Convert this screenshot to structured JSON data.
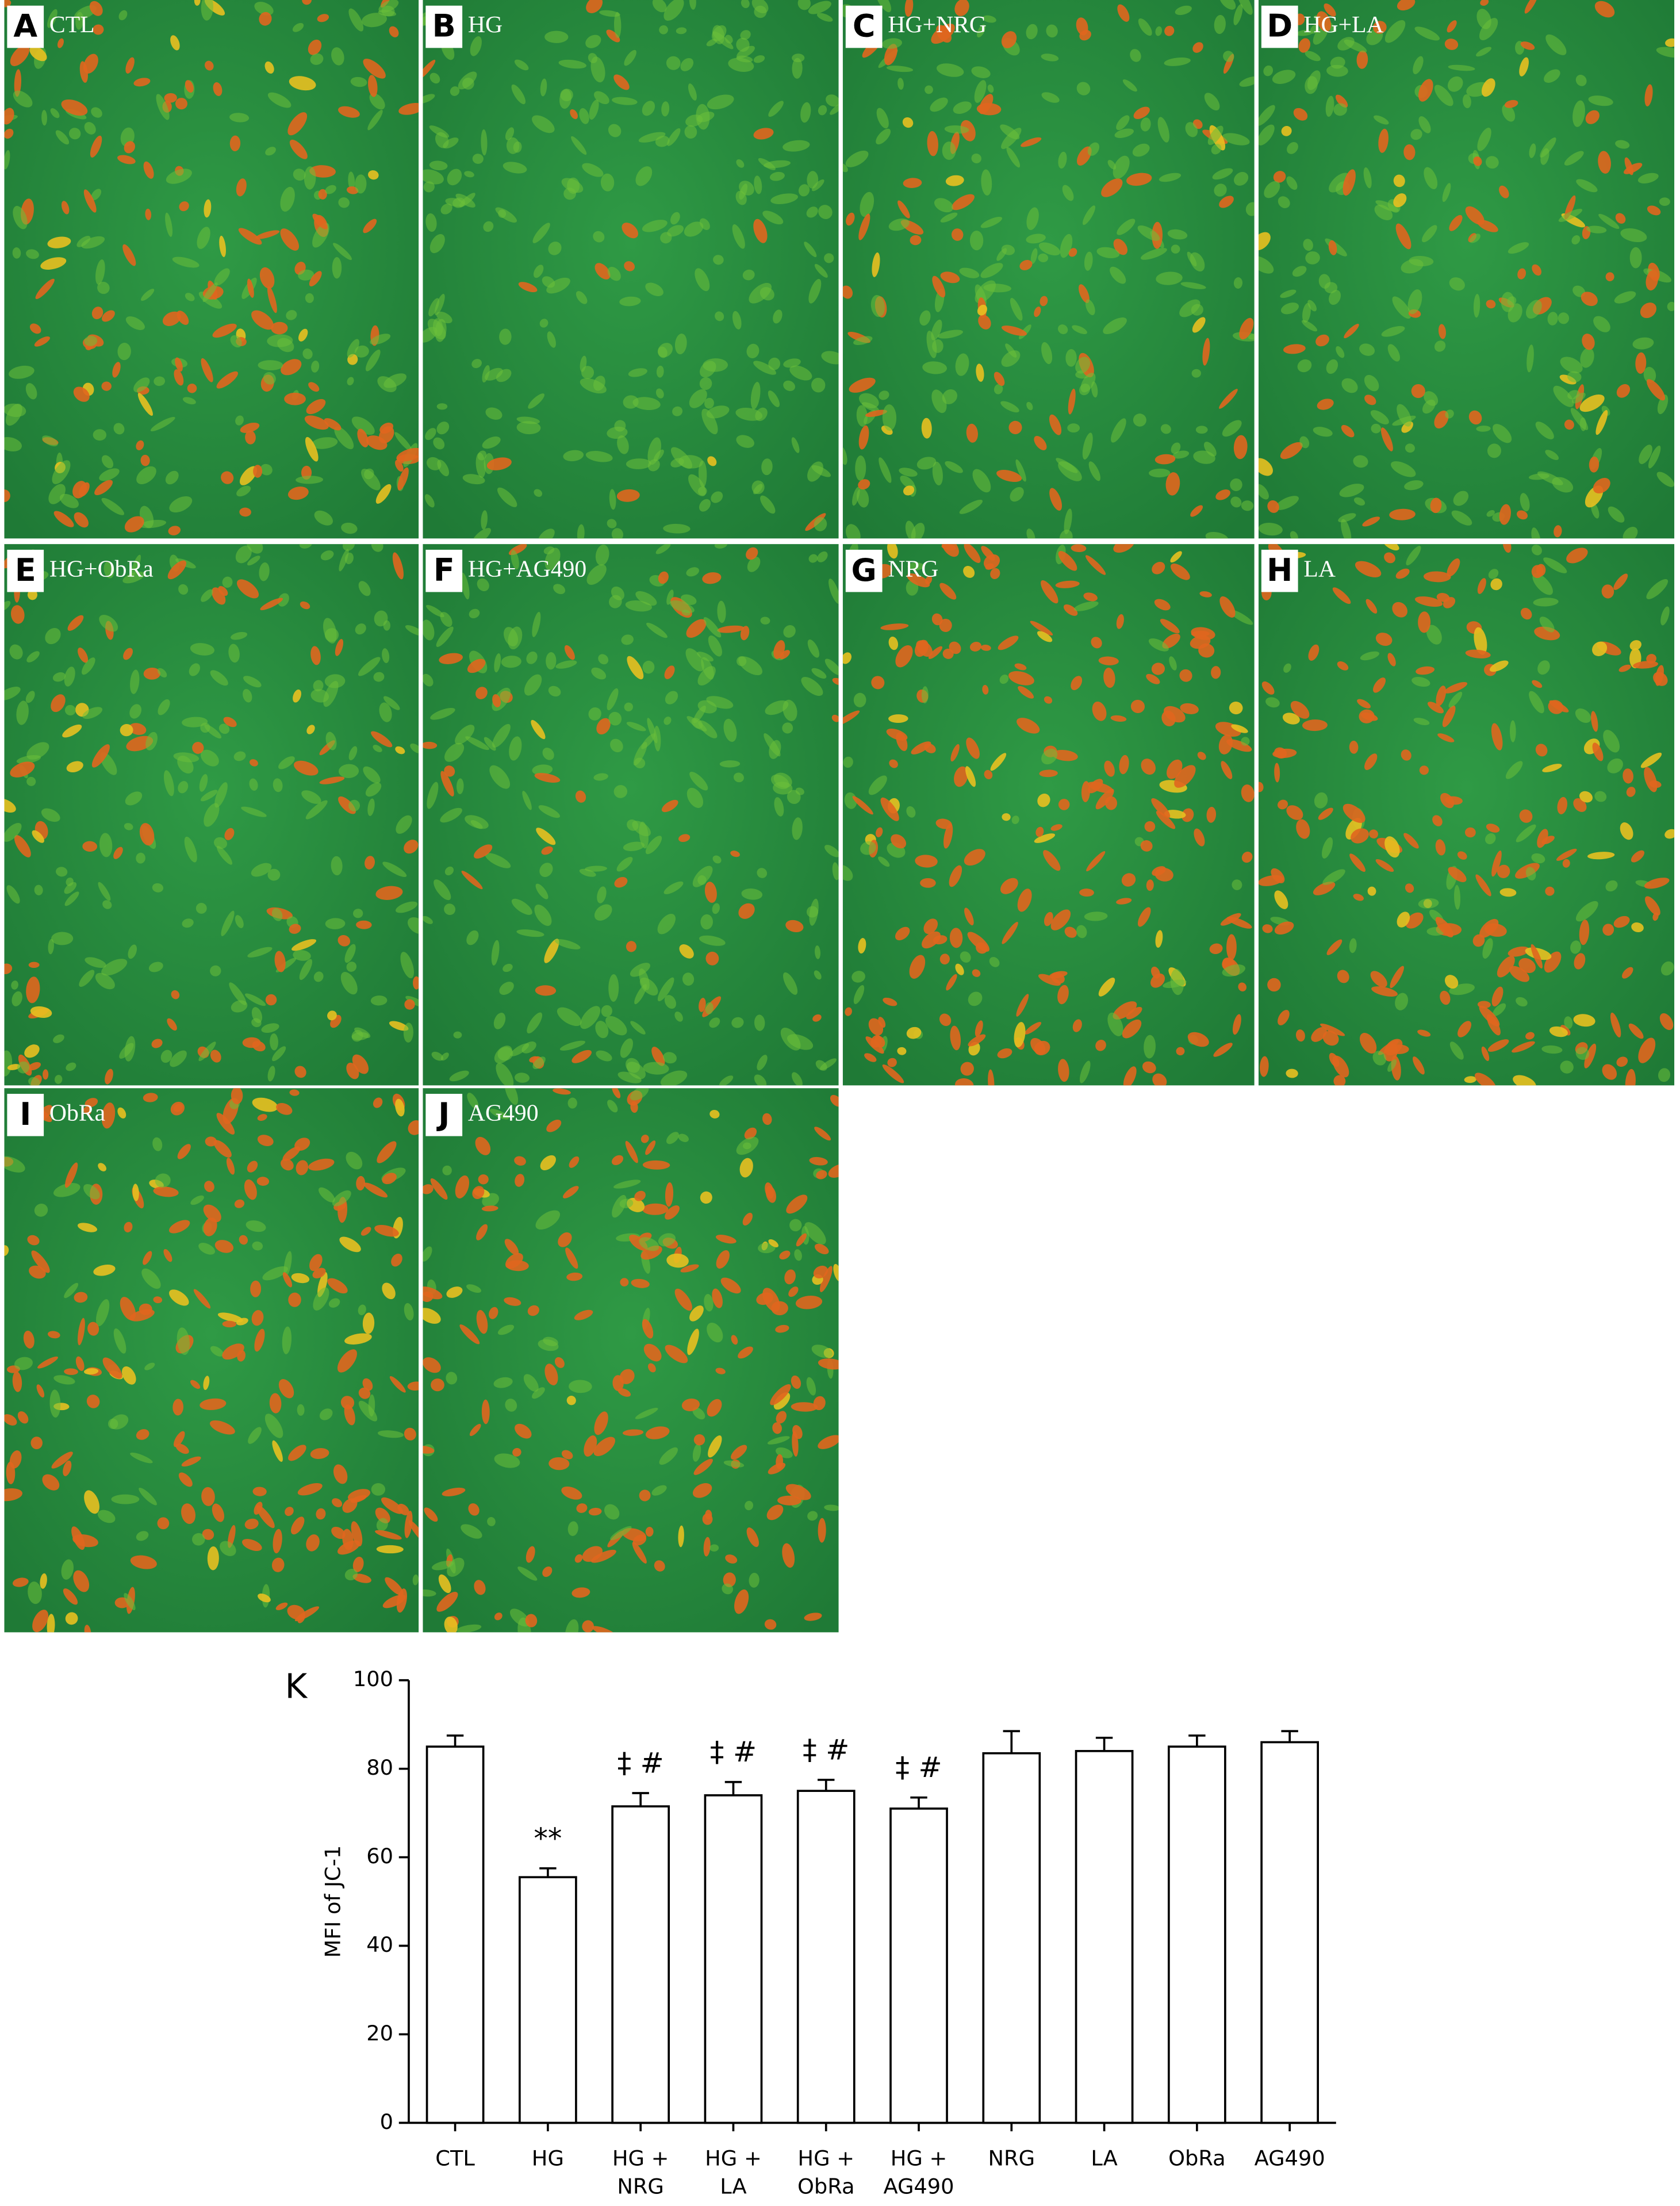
{
  "panels": [
    {
      "letter": "A",
      "label": "CTL"
    },
    {
      "letter": "B",
      "label": "HG"
    },
    {
      "letter": "C",
      "label": "HG+NRG"
    },
    {
      "letter": "D",
      "label": "HG+LA"
    },
    {
      "letter": "E",
      "label": "HG+ObRa"
    },
    {
      "letter": "F",
      "label": "HG+AG490"
    },
    {
      "letter": "G",
      "label": "NRG"
    },
    {
      "letter": "H",
      "label": "LA"
    },
    {
      "letter": "I",
      "label": "ObRa"
    },
    {
      "letter": "J",
      "label": "AG490"
    }
  ],
  "chart_data": {
    "type": "bar",
    "panel_letter": "K",
    "ylabel": "MFI of JC-1",
    "categories": [
      [
        "CTL"
      ],
      [
        "HG"
      ],
      [
        "HG +",
        "NRG"
      ],
      [
        "HG +",
        "LA"
      ],
      [
        "HG +",
        "ObRa"
      ],
      [
        "HG +",
        "AG490"
      ],
      [
        "NRG"
      ],
      [
        "LA"
      ],
      [
        "ObRa"
      ],
      [
        "AG490"
      ]
    ],
    "values": [
      85,
      55.5,
      71.5,
      74,
      75,
      71,
      83.5,
      84,
      85,
      86
    ],
    "errors": [
      2.5,
      2,
      3,
      3,
      2.5,
      2.5,
      5,
      3,
      2.5,
      2.5
    ],
    "annotations": [
      null,
      "**",
      "‡ #",
      "‡ #",
      "‡ #",
      "‡ #",
      null,
      null,
      null,
      null
    ],
    "color": "#ffffff",
    "ylim": [
      0,
      100
    ],
    "yticks": [
      0,
      20,
      40,
      60,
      80,
      100
    ]
  }
}
